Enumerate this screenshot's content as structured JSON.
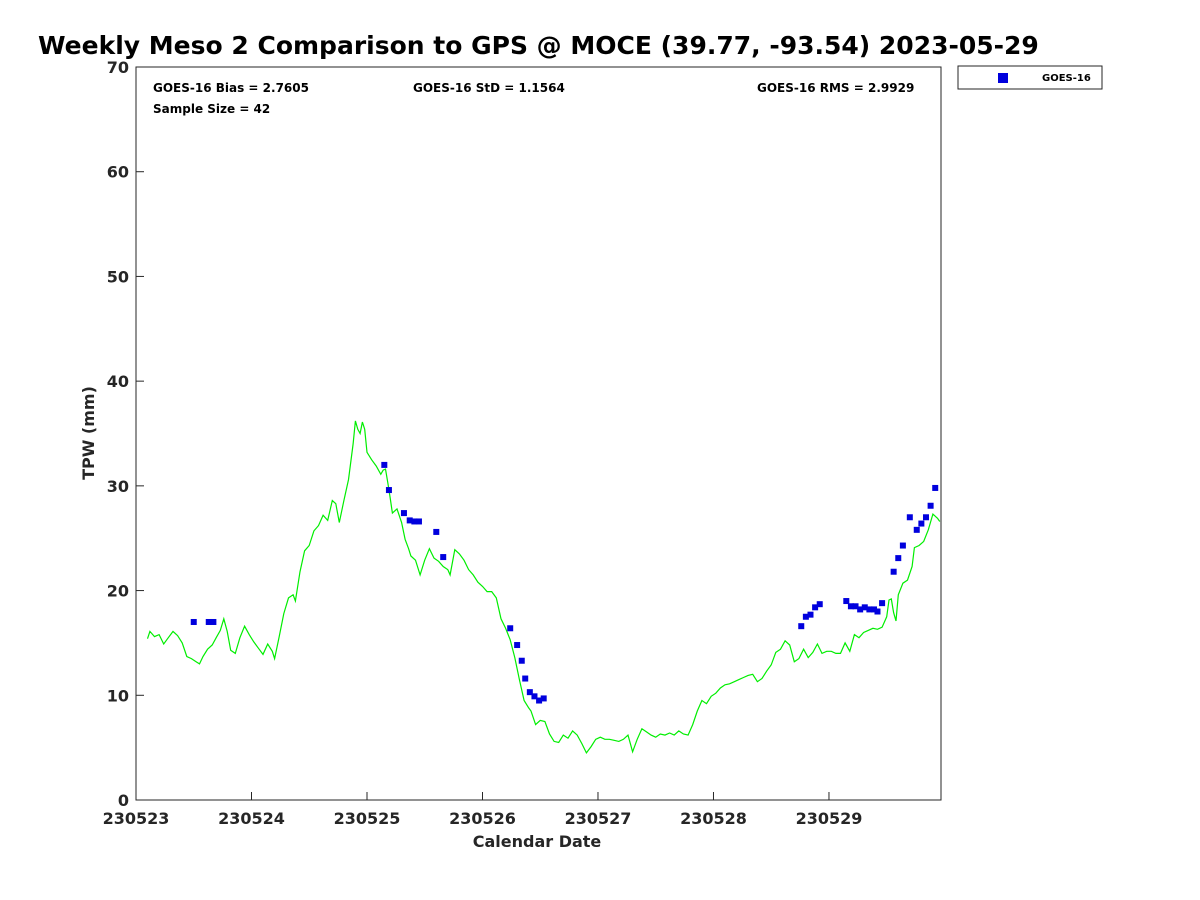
{
  "chart_data": {
    "type": "scatter",
    "title": "Weekly Meso 2 Comparison to GPS @ MOCE (39.77, -93.54) 2023-05-29",
    "xlabel": "Calendar Date",
    "ylabel": "TPW (mm)",
    "xlim": [
      0,
      6.97
    ],
    "ylim": [
      0,
      70
    ],
    "x_tick_values": [
      0,
      1,
      2,
      3,
      4,
      5,
      6
    ],
    "x_tick_labels": [
      "230523",
      "230524",
      "230525",
      "230526",
      "230527",
      "230528",
      "230529"
    ],
    "y_tick_values": [
      0,
      10,
      20,
      30,
      40,
      50,
      60,
      70
    ],
    "y_tick_labels": [
      "0",
      "10",
      "20",
      "30",
      "40",
      "50",
      "60",
      "70"
    ],
    "grid": false,
    "legend_position": "outside-top-right",
    "stats": {
      "bias": "GOES-16 Bias = 2.7605",
      "std": "GOES-16 StD = 1.1564",
      "rms": "GOES-16 RMS = 2.9929",
      "sample": "Sample Size = 42"
    },
    "series": [
      {
        "name": "GOES-16",
        "kind": "scatter",
        "marker": "square",
        "color": "#0000dd",
        "points": [
          [
            0.5,
            17.0
          ],
          [
            0.63,
            17.0
          ],
          [
            0.67,
            17.0
          ],
          [
            2.15,
            32.0
          ],
          [
            2.19,
            29.6
          ],
          [
            2.32,
            27.4
          ],
          [
            2.37,
            26.7
          ],
          [
            2.41,
            26.6
          ],
          [
            2.45,
            26.6
          ],
          [
            2.6,
            25.6
          ],
          [
            2.66,
            23.2
          ],
          [
            3.24,
            16.4
          ],
          [
            3.3,
            14.8
          ],
          [
            3.34,
            13.3
          ],
          [
            3.37,
            11.6
          ],
          [
            3.41,
            10.3
          ],
          [
            3.45,
            9.9
          ],
          [
            3.49,
            9.5
          ],
          [
            3.53,
            9.7
          ],
          [
            5.76,
            16.6
          ],
          [
            5.8,
            17.5
          ],
          [
            5.84,
            17.7
          ],
          [
            5.88,
            18.4
          ],
          [
            5.92,
            18.7
          ],
          [
            6.15,
            19.0
          ],
          [
            6.19,
            18.5
          ],
          [
            6.23,
            18.5
          ],
          [
            6.27,
            18.2
          ],
          [
            6.31,
            18.4
          ],
          [
            6.35,
            18.2
          ],
          [
            6.39,
            18.2
          ],
          [
            6.42,
            18.0
          ],
          [
            6.46,
            18.8
          ],
          [
            6.56,
            21.8
          ],
          [
            6.6,
            23.1
          ],
          [
            6.64,
            24.3
          ],
          [
            6.7,
            27.0
          ],
          [
            6.76,
            25.8
          ],
          [
            6.8,
            26.4
          ],
          [
            6.84,
            27.0
          ],
          [
            6.88,
            28.1
          ],
          [
            6.92,
            29.8
          ]
        ]
      },
      {
        "name": "",
        "kind": "line",
        "color": "#00ee00",
        "points": [
          [
            0.1,
            15.4
          ],
          [
            0.12,
            16.1
          ],
          [
            0.16,
            15.6
          ],
          [
            0.2,
            15.8
          ],
          [
            0.24,
            14.9
          ],
          [
            0.28,
            15.5
          ],
          [
            0.32,
            16.1
          ],
          [
            0.36,
            15.7
          ],
          [
            0.4,
            15.0
          ],
          [
            0.44,
            13.7
          ],
          [
            0.48,
            13.5
          ],
          [
            0.52,
            13.2
          ],
          [
            0.55,
            13.0
          ],
          [
            0.58,
            13.7
          ],
          [
            0.62,
            14.4
          ],
          [
            0.66,
            14.8
          ],
          [
            0.7,
            15.6
          ],
          [
            0.73,
            16.2
          ],
          [
            0.76,
            17.3
          ],
          [
            0.79,
            16.1
          ],
          [
            0.82,
            14.3
          ],
          [
            0.86,
            14.0
          ],
          [
            0.9,
            15.5
          ],
          [
            0.94,
            16.6
          ],
          [
            0.98,
            15.8
          ],
          [
            1.02,
            15.1
          ],
          [
            1.06,
            14.5
          ],
          [
            1.1,
            13.9
          ],
          [
            1.14,
            14.9
          ],
          [
            1.18,
            14.2
          ],
          [
            1.2,
            13.5
          ],
          [
            1.24,
            15.6
          ],
          [
            1.28,
            17.8
          ],
          [
            1.32,
            19.3
          ],
          [
            1.36,
            19.6
          ],
          [
            1.38,
            19.0
          ],
          [
            1.42,
            21.8
          ],
          [
            1.46,
            23.8
          ],
          [
            1.5,
            24.3
          ],
          [
            1.54,
            25.7
          ],
          [
            1.58,
            26.2
          ],
          [
            1.62,
            27.2
          ],
          [
            1.66,
            26.7
          ],
          [
            1.7,
            28.6
          ],
          [
            1.73,
            28.3
          ],
          [
            1.76,
            26.5
          ],
          [
            1.8,
            28.6
          ],
          [
            1.84,
            30.6
          ],
          [
            1.88,
            34.0
          ],
          [
            1.9,
            36.2
          ],
          [
            1.92,
            35.4
          ],
          [
            1.94,
            35.0
          ],
          [
            1.96,
            36.1
          ],
          [
            1.98,
            35.4
          ],
          [
            2.0,
            33.2
          ],
          [
            2.04,
            32.5
          ],
          [
            2.08,
            31.9
          ],
          [
            2.12,
            31.1
          ],
          [
            2.14,
            31.5
          ],
          [
            2.16,
            31.6
          ],
          [
            2.18,
            30.3
          ],
          [
            2.2,
            28.9
          ],
          [
            2.22,
            27.4
          ],
          [
            2.26,
            27.8
          ],
          [
            2.3,
            26.5
          ],
          [
            2.33,
            24.9
          ],
          [
            2.36,
            24.0
          ],
          [
            2.38,
            23.3
          ],
          [
            2.42,
            22.9
          ],
          [
            2.46,
            21.5
          ],
          [
            2.5,
            22.9
          ],
          [
            2.54,
            24.0
          ],
          [
            2.58,
            23.1
          ],
          [
            2.62,
            22.8
          ],
          [
            2.66,
            22.3
          ],
          [
            2.7,
            22.0
          ],
          [
            2.72,
            21.5
          ],
          [
            2.76,
            23.9
          ],
          [
            2.8,
            23.5
          ],
          [
            2.84,
            22.9
          ],
          [
            2.88,
            22.0
          ],
          [
            2.92,
            21.5
          ],
          [
            2.96,
            20.8
          ],
          [
            3.0,
            20.4
          ],
          [
            3.04,
            19.9
          ],
          [
            3.08,
            19.9
          ],
          [
            3.12,
            19.3
          ],
          [
            3.16,
            17.3
          ],
          [
            3.2,
            16.4
          ],
          [
            3.24,
            15.3
          ],
          [
            3.28,
            13.6
          ],
          [
            3.32,
            11.5
          ],
          [
            3.36,
            9.5
          ],
          [
            3.4,
            8.8
          ],
          [
            3.42,
            8.5
          ],
          [
            3.46,
            7.2
          ],
          [
            3.5,
            7.6
          ],
          [
            3.54,
            7.5
          ],
          [
            3.58,
            6.3
          ],
          [
            3.62,
            5.6
          ],
          [
            3.66,
            5.5
          ],
          [
            3.7,
            6.2
          ],
          [
            3.74,
            5.9
          ],
          [
            3.78,
            6.6
          ],
          [
            3.82,
            6.2
          ],
          [
            3.86,
            5.4
          ],
          [
            3.9,
            4.5
          ],
          [
            3.94,
            5.1
          ],
          [
            3.98,
            5.8
          ],
          [
            4.02,
            6.0
          ],
          [
            4.06,
            5.8
          ],
          [
            4.1,
            5.8
          ],
          [
            4.14,
            5.7
          ],
          [
            4.18,
            5.6
          ],
          [
            4.22,
            5.8
          ],
          [
            4.26,
            6.2
          ],
          [
            4.3,
            4.6
          ],
          [
            4.34,
            5.8
          ],
          [
            4.38,
            6.8
          ],
          [
            4.42,
            6.5
          ],
          [
            4.46,
            6.2
          ],
          [
            4.5,
            6.0
          ],
          [
            4.54,
            6.3
          ],
          [
            4.58,
            6.2
          ],
          [
            4.62,
            6.4
          ],
          [
            4.66,
            6.2
          ],
          [
            4.7,
            6.6
          ],
          [
            4.74,
            6.3
          ],
          [
            4.78,
            6.2
          ],
          [
            4.82,
            7.2
          ],
          [
            4.86,
            8.5
          ],
          [
            4.9,
            9.5
          ],
          [
            4.94,
            9.2
          ],
          [
            4.98,
            9.9
          ],
          [
            5.02,
            10.2
          ],
          [
            5.06,
            10.7
          ],
          [
            5.1,
            11.0
          ],
          [
            5.14,
            11.1
          ],
          [
            5.18,
            11.3
          ],
          [
            5.22,
            11.5
          ],
          [
            5.26,
            11.7
          ],
          [
            5.3,
            11.9
          ],
          [
            5.34,
            12.0
          ],
          [
            5.38,
            11.3
          ],
          [
            5.42,
            11.6
          ],
          [
            5.46,
            12.3
          ],
          [
            5.5,
            12.9
          ],
          [
            5.54,
            14.1
          ],
          [
            5.58,
            14.4
          ],
          [
            5.62,
            15.2
          ],
          [
            5.66,
            14.8
          ],
          [
            5.7,
            13.2
          ],
          [
            5.74,
            13.5
          ],
          [
            5.78,
            14.4
          ],
          [
            5.82,
            13.6
          ],
          [
            5.86,
            14.1
          ],
          [
            5.9,
            14.9
          ],
          [
            5.94,
            14.0
          ],
          [
            5.98,
            14.2
          ],
          [
            6.02,
            14.2
          ],
          [
            6.06,
            14.0
          ],
          [
            6.1,
            14.0
          ],
          [
            6.14,
            15.0
          ],
          [
            6.18,
            14.2
          ],
          [
            6.22,
            15.8
          ],
          [
            6.26,
            15.5
          ],
          [
            6.3,
            16.0
          ],
          [
            6.34,
            16.2
          ],
          [
            6.38,
            16.4
          ],
          [
            6.42,
            16.3
          ],
          [
            6.46,
            16.5
          ],
          [
            6.5,
            17.5
          ],
          [
            6.52,
            19.1
          ],
          [
            6.54,
            19.2
          ],
          [
            6.56,
            17.9
          ],
          [
            6.58,
            17.1
          ],
          [
            6.6,
            19.6
          ],
          [
            6.64,
            20.7
          ],
          [
            6.68,
            21.0
          ],
          [
            6.72,
            22.3
          ],
          [
            6.74,
            24.1
          ],
          [
            6.78,
            24.3
          ],
          [
            6.82,
            24.7
          ],
          [
            6.86,
            25.8
          ],
          [
            6.9,
            27.3
          ],
          [
            6.94,
            26.9
          ],
          [
            6.96,
            26.6
          ]
        ]
      }
    ]
  }
}
